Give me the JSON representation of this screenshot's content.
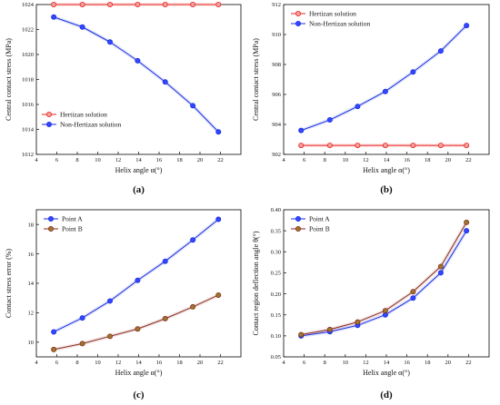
{
  "chart_data": [
    {
      "type": "line",
      "panel_label": "(a)",
      "xlabel": "Helix angle α(°)",
      "ylabel": "Central contact stress (MPa)",
      "xlim": [
        4,
        24
      ],
      "ylim": [
        1012,
        1024
      ],
      "xticks": [
        4,
        6,
        8,
        10,
        12,
        14,
        16,
        18,
        20,
        22
      ],
      "yticks": [
        1012,
        1014,
        1016,
        1018,
        1020,
        1022,
        1024
      ],
      "legend_position": "bottom-left",
      "series": [
        {
          "name": "Hertizan solution",
          "color": "#e8211f",
          "marker_fill": "#f2a09a",
          "x": [
            5.7,
            8.5,
            11.2,
            13.9,
            16.6,
            19.3,
            21.8
          ],
          "y": [
            1024,
            1024,
            1024,
            1024,
            1024,
            1024,
            1024
          ]
        },
        {
          "name": "Non-Hertizan solution",
          "color": "#1a2ee0",
          "marker_fill": "#3347ff",
          "x": [
            5.7,
            8.5,
            11.2,
            13.9,
            16.6,
            19.3,
            21.8
          ],
          "y": [
            1023.0,
            1022.2,
            1021.0,
            1019.5,
            1017.8,
            1015.9,
            1013.8
          ]
        }
      ]
    },
    {
      "type": "line",
      "panel_label": "(b)",
      "xlabel": "Helix angle α(°)",
      "ylabel": "Central contact stress (MPa)",
      "xlim": [
        4,
        24
      ],
      "ylim": [
        902,
        912
      ],
      "xticks": [
        4,
        6,
        8,
        10,
        12,
        14,
        16,
        18,
        20,
        22
      ],
      "yticks": [
        902,
        904,
        906,
        908,
        910,
        912
      ],
      "legend_position": "top-left",
      "series": [
        {
          "name": "Hertizan solution",
          "color": "#e8211f",
          "marker_fill": "#f2a09a",
          "x": [
            5.7,
            8.5,
            11.2,
            13.9,
            16.6,
            19.3,
            21.8
          ],
          "y": [
            902.6,
            902.6,
            902.6,
            902.6,
            902.6,
            902.6,
            902.6
          ]
        },
        {
          "name": "Non-Hertizan solution",
          "color": "#1a2ee0",
          "marker_fill": "#3347ff",
          "x": [
            5.7,
            8.5,
            11.2,
            13.9,
            16.6,
            19.3,
            21.8
          ],
          "y": [
            903.6,
            904.3,
            905.2,
            906.2,
            907.5,
            908.9,
            910.6
          ]
        }
      ]
    },
    {
      "type": "line",
      "panel_label": "(c)",
      "xlabel": "Helix angle α(°)",
      "ylabel": "Contact stress error (%)",
      "xlim": [
        4,
        24
      ],
      "ylim": [
        9,
        19
      ],
      "xticks": [
        4,
        6,
        8,
        10,
        12,
        14,
        16,
        18,
        20,
        22
      ],
      "yticks": [
        10,
        12,
        14,
        16,
        18
      ],
      "legend_position": "top-left",
      "series": [
        {
          "name": "Point A",
          "color": "#1a2ee0",
          "marker_fill": "#3347ff",
          "x": [
            5.7,
            8.5,
            11.2,
            13.9,
            16.6,
            19.3,
            21.8
          ],
          "y": [
            10.7,
            11.65,
            12.8,
            14.2,
            15.5,
            16.95,
            18.35
          ]
        },
        {
          "name": "Point B",
          "color": "#8a2a1f",
          "marker_fill": "#9a7a2a",
          "x": [
            5.7,
            8.5,
            11.2,
            13.9,
            16.6,
            19.3,
            21.8
          ],
          "y": [
            9.5,
            9.9,
            10.4,
            10.9,
            11.6,
            12.4,
            13.2
          ]
        }
      ]
    },
    {
      "type": "line",
      "panel_label": "(d)",
      "xlabel": "Helix angle α(°)",
      "ylabel": "Contact region deflection angle θ(°)",
      "xlim": [
        4,
        24
      ],
      "ylim": [
        0.05,
        0.4
      ],
      "xticks": [
        4,
        6,
        8,
        10,
        12,
        14,
        16,
        18,
        20,
        22
      ],
      "yticks": [
        0.05,
        0.1,
        0.15,
        0.2,
        0.25,
        0.3,
        0.35,
        0.4
      ],
      "ytick_labels": [
        "0.05",
        "0.10",
        "0.15",
        "0.20",
        "0.25",
        "0.30",
        "0.35",
        "0.40"
      ],
      "legend_position": "top-left",
      "series": [
        {
          "name": "Point A",
          "color": "#1a2ee0",
          "marker_fill": "#3347ff",
          "x": [
            5.7,
            8.5,
            11.2,
            13.9,
            16.6,
            19.3,
            21.8
          ],
          "y": [
            0.1,
            0.11,
            0.125,
            0.15,
            0.19,
            0.25,
            0.35
          ]
        },
        {
          "name": "Point B",
          "color": "#8a2a1f",
          "marker_fill": "#9a7a2a",
          "x": [
            5.7,
            8.5,
            11.2,
            13.9,
            16.6,
            19.3,
            21.8
          ],
          "y": [
            0.103,
            0.115,
            0.133,
            0.16,
            0.205,
            0.265,
            0.37
          ]
        }
      ]
    }
  ]
}
